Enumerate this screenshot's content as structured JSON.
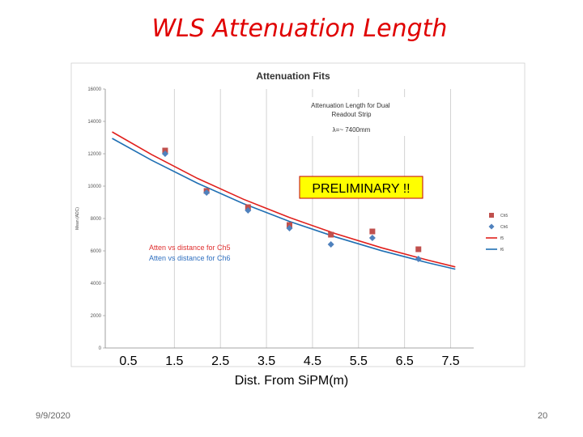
{
  "slide": {
    "title": "WLS Attenuation Length",
    "date": "9/9/2020",
    "page_number": "20"
  },
  "chart_data": {
    "type": "scatter",
    "title": "Attenuation Fits",
    "xlabel": "Dist. From SiPM(m)",
    "ylabel": "Mean (ADC)",
    "x_ticks": [
      "0.5",
      "1.5",
      "2.5",
      "3.5",
      "4.5",
      "5.5",
      "6.5",
      "7.5"
    ],
    "xlim": [
      0.0,
      8.0
    ],
    "ylim": [
      0,
      16000
    ],
    "y_ticks": [
      "0",
      "2000",
      "4000",
      "6000",
      "8000",
      "10000",
      "12000",
      "14000",
      "16000"
    ],
    "grid": "vertical lines at x ticks",
    "legend_position": "right",
    "series": [
      {
        "name": "Ch5",
        "marker": "square",
        "color": "#c0504d",
        "x": [
          1.3,
          2.2,
          3.1,
          4.0,
          4.9,
          5.8,
          6.8
        ],
        "y": [
          12200,
          9700,
          8700,
          7600,
          7000,
          7200,
          6100
        ]
      },
      {
        "name": "Ch6",
        "marker": "diamond",
        "color": "#4f81bd",
        "x": [
          1.3,
          2.2,
          3.1,
          4.0,
          4.9,
          5.8,
          6.8
        ],
        "y": [
          12000,
          9600,
          8500,
          7400,
          6400,
          6800,
          5500
        ]
      },
      {
        "name": "f5",
        "line": true,
        "color": "#e0201c",
        "x": [
          0.15,
          1.0,
          2.0,
          3.0,
          4.0,
          5.0,
          6.0,
          7.0,
          7.6
        ],
        "y": [
          13350,
          11960,
          10480,
          9190,
          8060,
          7060,
          6190,
          5430,
          5010
        ]
      },
      {
        "name": "f6",
        "line": true,
        "color": "#1f6fb3",
        "x": [
          0.15,
          1.0,
          2.0,
          3.0,
          4.0,
          5.0,
          6.0,
          7.0,
          7.6
        ],
        "y": [
          12950,
          11610,
          10180,
          8920,
          7820,
          6860,
          6010,
          5270,
          4870
        ]
      }
    ],
    "legend_labels": [
      "Ch5",
      "Ch6",
      "f5",
      "f6"
    ],
    "annotations": {
      "box_title": "Attenuation Length for  Dual Readout Strip",
      "box_value": "λ=~ 7400mm",
      "preliminary": "PRELIMINARY !!",
      "series_caption_ch5": "Atten vs distance for Ch5",
      "series_caption_ch6": "Atten vs distance for Ch6"
    },
    "colors": {
      "ch5_caption": "#e03030",
      "ch6_caption": "#3070c0",
      "preliminary_fill": "#ffff00",
      "preliminary_border": "#c00000"
    }
  }
}
